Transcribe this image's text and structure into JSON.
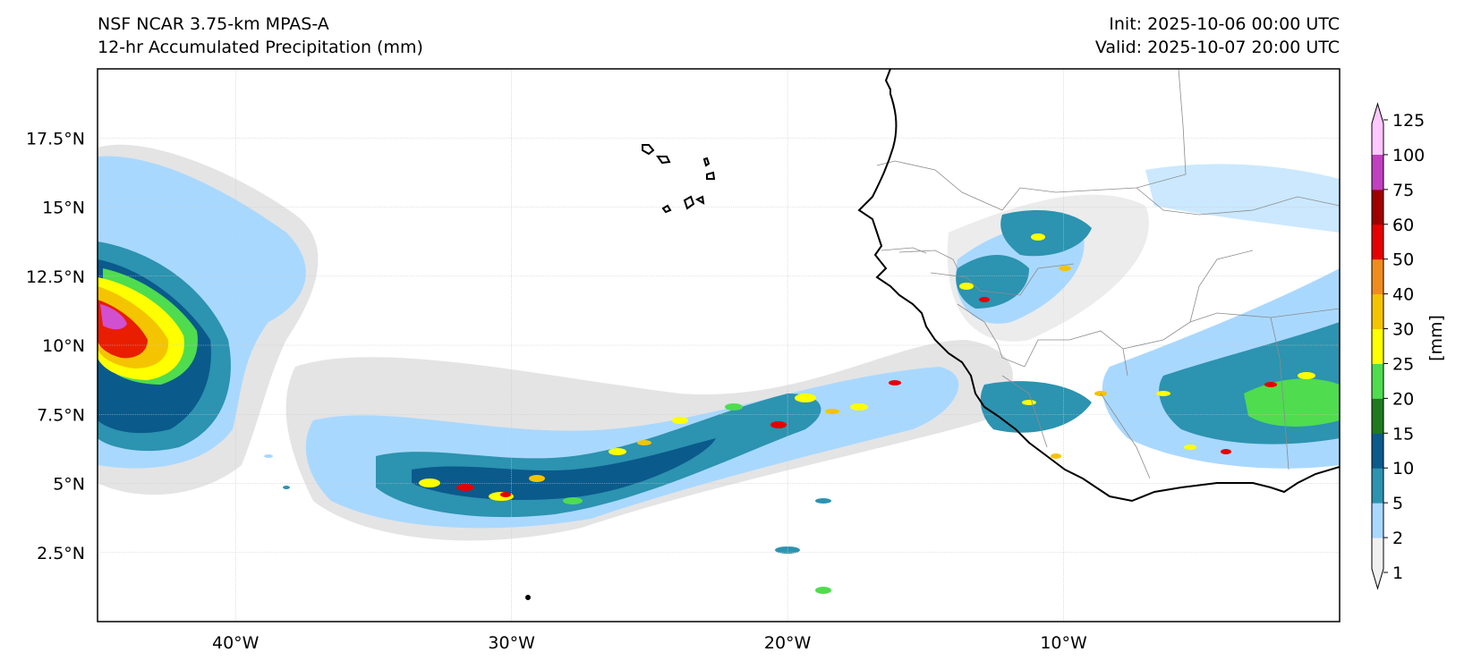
{
  "header": {
    "title_line1": "NSF NCAR 3.75-km MPAS-A",
    "title_line2": "12-hr Accumulated Precipitation (mm)",
    "init": "Init: 2025-10-06 00:00 UTC",
    "valid": "Valid: 2025-10-07 20:00 UTC"
  },
  "map": {
    "lon_range": [
      -45,
      0
    ],
    "lat_range": [
      0,
      20
    ],
    "lon_ticks": [
      {
        "value": -40,
        "label": "40°W"
      },
      {
        "value": -30,
        "label": "30°W"
      },
      {
        "value": -20,
        "label": "20°W"
      },
      {
        "value": -10,
        "label": "10°W"
      }
    ],
    "lat_ticks": [
      {
        "value": 2.5,
        "label": "2.5°N"
      },
      {
        "value": 5,
        "label": "5°N"
      },
      {
        "value": 7.5,
        "label": "7.5°N"
      },
      {
        "value": 10,
        "label": "10°N"
      },
      {
        "value": 12.5,
        "label": "12.5°N"
      },
      {
        "value": 15,
        "label": "15°N"
      },
      {
        "value": 17.5,
        "label": "17.5°N"
      }
    ]
  },
  "colorbar": {
    "label": "[mm]",
    "levels": [
      "1",
      "2",
      "5",
      "10",
      "15",
      "20",
      "25",
      "30",
      "40",
      "50",
      "60",
      "75",
      "100",
      "125"
    ],
    "colors": [
      "#f0f0f0",
      "#a9d8ff",
      "#2c93b0",
      "#0b5a8c",
      "#1f7a1f",
      "#4fdc4f",
      "#ffff00",
      "#f5c400",
      "#f08c1e",
      "#e60000",
      "#a00000",
      "#c040c0",
      "#ffc8ff"
    ]
  },
  "colors": {
    "light_gray": "#e4e4e4",
    "light_blue": "#a9d8ff",
    "teal": "#2c93b0",
    "dark_blue": "#0b5a8c",
    "green": "#4fdc4f",
    "yellow": "#ffff00",
    "orange": "#f5c400",
    "red": "#e60000",
    "magenta": "#d050d0"
  }
}
